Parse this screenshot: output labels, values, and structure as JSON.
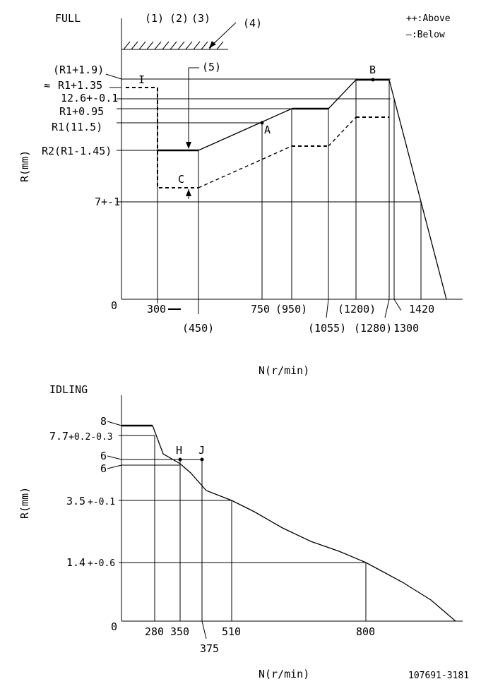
{
  "full": {
    "title": "FULL",
    "legend_above": "++:Above",
    "legend_below": "—:Below",
    "notes": [
      "(1)",
      "(2)",
      "(3)"
    ],
    "callout_4": "(4)",
    "callout_5": "(5)",
    "y_axis_label": "R(mm)",
    "x_axis_label": "N(r/min)",
    "y_labels": {
      "r1_1_9": "(R1+1.9)",
      "r1_1_35": "R1+1.35",
      "approx": "≈",
      "v12_6": "12.6+-0.1",
      "r1_0_95": "R1+0.95",
      "r1": "R1(11.5)",
      "r2": "R2(R1-1.45)",
      "v7": "7+-1",
      "zero": "0"
    },
    "x_labels": {
      "n300": "300",
      "n450": "(450)",
      "n750": "750",
      "n950": "(950)",
      "n1055": "(1055)",
      "n1200": "(1200)",
      "n1280": "(1280)",
      "n1300": "1300",
      "n1420": "1420"
    },
    "points": {
      "A": "A",
      "B": "B",
      "C": "C",
      "I": "I"
    },
    "chart_data": {
      "type": "line",
      "xlabel": "N(r/min)",
      "ylabel": "R(mm)",
      "series": [
        {
          "name": "Above",
          "x": [
            300,
            300,
            450,
            750,
            950,
            1055,
            1200,
            1300,
            1420
          ],
          "y": [
            "R1+1.35",
            "R2(R1-1.45)",
            "R2(R1-1.45)",
            "R1(11.5)",
            "R1+0.95",
            "R1+0.95",
            "12.6+-0.1",
            "12.6+-0.1",
            "7+-1"
          ]
        },
        {
          "name": "Below",
          "x": [
            450,
            950,
            1055,
            1200,
            1280
          ],
          "y": [
            "C",
            "",
            "",
            "",
            ""
          ]
        }
      ]
    }
  },
  "idling": {
    "title": "IDLING",
    "y_axis_label": "R(mm)",
    "x_axis_label": "N(r/min)",
    "y_labels": {
      "v8": "8",
      "v7_7": "7.7",
      "v7_7_tol": "+0.2-0.3",
      "v6a": "6",
      "v6b": "6",
      "v3_5": "3.5",
      "v3_5_tol": "+-0.1",
      "v1_4": "1.4",
      "v1_4_tol": "+-0.6",
      "zero": "0"
    },
    "x_labels": {
      "n280": "280",
      "n350": "350",
      "n375": "375",
      "n510": "510",
      "n800": "800"
    },
    "points": {
      "H": "H",
      "J": "J"
    },
    "chart_data": {
      "type": "line",
      "xlabel": "N(r/min)",
      "ylabel": "R(mm)",
      "x": [
        280,
        350,
        375,
        510,
        800
      ],
      "y": [
        7.7,
        6,
        6,
        3.5,
        1.4
      ]
    }
  },
  "drawing_number": "107691-3181"
}
